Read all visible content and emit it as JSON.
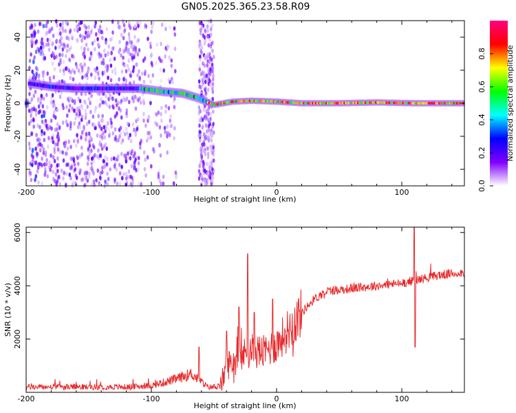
{
  "title": "GN05.2025.365.23.58.R09",
  "chart_data": [
    {
      "type": "heatmap",
      "name": "spectrogram",
      "xlabel": "Height of straight line (km)",
      "ylabel": "Frequency (Hz)",
      "xlim": [
        -200,
        150
      ],
      "ylim": [
        -50,
        50
      ],
      "xticks": [
        -200,
        -100,
        0,
        100
      ],
      "yticks": [
        -40,
        -20,
        0,
        20,
        40
      ],
      "ridge_frequency_hz": [
        {
          "x": -198,
          "f": 12
        },
        {
          "x": -180,
          "f": 10
        },
        {
          "x": -160,
          "f": 9
        },
        {
          "x": -140,
          "f": 9
        },
        {
          "x": -110,
          "f": 9
        },
        {
          "x": -90,
          "f": 7
        },
        {
          "x": -75,
          "f": 6
        },
        {
          "x": -62,
          "f": 3
        },
        {
          "x": -50,
          "f": -1
        },
        {
          "x": -35,
          "f": 1
        },
        {
          "x": -20,
          "f": 1.5
        },
        {
          "x": 0,
          "f": 1
        },
        {
          "x": 20,
          "f": 0
        },
        {
          "x": 50,
          "f": 0
        },
        {
          "x": 80,
          "f": 0.5
        },
        {
          "x": 110,
          "f": 0
        },
        {
          "x": 150,
          "f": 0
        }
      ],
      "colorbar": {
        "label": "Normalized spectral amplitude",
        "range": [
          0,
          1
        ],
        "ticks": [
          "0.0",
          "0.2",
          "0.4",
          "0.6",
          "0.8"
        ],
        "colors": [
          "#ffffff",
          "#8000ff",
          "#0000ff",
          "#00ffff",
          "#00ff00",
          "#ffff00",
          "#ff0000",
          "#ff0080"
        ]
      }
    },
    {
      "type": "line",
      "name": "snr",
      "xlabel": "Height of straight line (km)",
      "ylabel": "SNR (10 * v/v)",
      "xlim": [
        -200,
        150
      ],
      "ylim": [
        0,
        6200
      ],
      "xticks": [
        -200,
        -100,
        0,
        100
      ],
      "yticks": [
        2000,
        4000,
        6000
      ],
      "color": "#e8282a",
      "trend": [
        {
          "x": -200,
          "y": 200
        },
        {
          "x": -160,
          "y": 200
        },
        {
          "x": -120,
          "y": 200
        },
        {
          "x": -100,
          "y": 250
        },
        {
          "x": -80,
          "y": 500
        },
        {
          "x": -68,
          "y": 700
        },
        {
          "x": -55,
          "y": 200
        },
        {
          "x": -45,
          "y": 200
        },
        {
          "x": -40,
          "y": 1000
        },
        {
          "x": -30,
          "y": 1300
        },
        {
          "x": -20,
          "y": 1600
        },
        {
          "x": -10,
          "y": 1500
        },
        {
          "x": 0,
          "y": 1800
        },
        {
          "x": 10,
          "y": 2400
        },
        {
          "x": 20,
          "y": 3000
        },
        {
          "x": 30,
          "y": 3500
        },
        {
          "x": 40,
          "y": 3800
        },
        {
          "x": 60,
          "y": 3900
        },
        {
          "x": 80,
          "y": 4000
        },
        {
          "x": 100,
          "y": 4100
        },
        {
          "x": 110,
          "y": 4200
        },
        {
          "x": 130,
          "y": 4400
        },
        {
          "x": 150,
          "y": 4500
        }
      ],
      "spikes": [
        {
          "x": -62,
          "y": 1700
        },
        {
          "x": -40,
          "y": 2300
        },
        {
          "x": -30,
          "y": 3200
        },
        {
          "x": -23,
          "y": 5200
        },
        {
          "x": -18,
          "y": 3000
        },
        {
          "x": -3,
          "y": 3500
        },
        {
          "x": 110,
          "y": 6300
        },
        {
          "x": 110.6,
          "y": 1700
        }
      ]
    }
  ]
}
